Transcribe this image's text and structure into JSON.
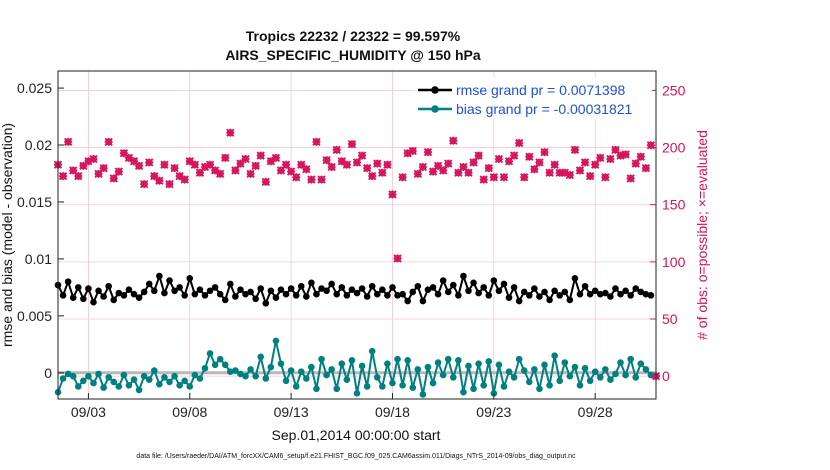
{
  "chart_data": {
    "type": "line",
    "title_line1": "Tropics 22232 / 22322 = 99.597%",
    "title_line2": "AIRS_SPECIFIC_HUMIDITY @ 150 hPa",
    "xlabel": "Sep.01,2014 00:00:00 start",
    "ylabel_left": "rmse and bias (model - observation)",
    "ylabel_right": "# of obs: o=possible; ×=evaluated",
    "footnote": "data file: /Users/raeder/DAI/ATM_forcXX/CAM6_setup/f.e21.FHIST_BGC.f09_025.CAM6assim.011/Diags_NTrS_2014-09/obs_diag_output.nc",
    "xlim": [
      1.5,
      31
    ],
    "x_ticks": [
      3,
      8,
      13,
      18,
      23,
      28
    ],
    "x_tick_labels": [
      "09/03",
      "09/08",
      "09/13",
      "09/18",
      "09/23",
      "09/28"
    ],
    "ylim_left": [
      -0.0023,
      0.0265
    ],
    "y_ticks_left": [
      0,
      0.005,
      0.01,
      0.015,
      0.02,
      0.025
    ],
    "y_tick_labels_left": [
      "0",
      "0.005",
      "0.01",
      "0.015",
      "0.02",
      "0.025"
    ],
    "ylim_right": [
      -20,
      267
    ],
    "y_ticks_right": [
      0,
      50,
      100,
      150,
      200,
      250
    ],
    "y_tick_labels_right": [
      "0",
      "50",
      "100",
      "150",
      "200",
      "250"
    ],
    "legend": [
      {
        "label": "rmse grand pr = 0.0071398",
        "color": "#000000"
      },
      {
        "label": "bias grand pr = -0.00031821",
        "color": "#008080"
      }
    ],
    "colors": {
      "rmse": "#000000",
      "bias": "#008080",
      "obs": "#d6145c",
      "zero_line": "#b8b8b8",
      "grid": "#f3c6d4"
    },
    "x": [
      1.5,
      1.75,
      2.0,
      2.25,
      2.5,
      2.75,
      3.0,
      3.25,
      3.5,
      3.75,
      4.0,
      4.25,
      4.5,
      4.75,
      5.0,
      5.25,
      5.5,
      5.75,
      6.0,
      6.25,
      6.5,
      6.75,
      7.0,
      7.25,
      7.5,
      7.75,
      8.0,
      8.25,
      8.5,
      8.75,
      9.0,
      9.25,
      9.5,
      9.75,
      10.0,
      10.25,
      10.5,
      10.75,
      11.0,
      11.25,
      11.5,
      11.75,
      12.0,
      12.25,
      12.5,
      12.75,
      13.0,
      13.25,
      13.5,
      13.75,
      14.0,
      14.25,
      14.5,
      14.75,
      15.0,
      15.25,
      15.5,
      15.75,
      16.0,
      16.25,
      16.5,
      16.75,
      17.0,
      17.25,
      17.5,
      17.75,
      18.0,
      18.25,
      18.5,
      18.75,
      19.0,
      19.25,
      19.5,
      19.75,
      20.0,
      20.25,
      20.5,
      20.75,
      21.0,
      21.25,
      21.5,
      21.75,
      22.0,
      22.25,
      22.5,
      22.75,
      23.0,
      23.25,
      23.5,
      23.75,
      24.0,
      24.25,
      24.5,
      24.75,
      25.0,
      25.25,
      25.5,
      25.75,
      26.0,
      26.25,
      26.5,
      26.75,
      27.0,
      27.25,
      27.5,
      27.75,
      28.0,
      28.25,
      28.5,
      28.75,
      29.0,
      29.25,
      29.5,
      29.75,
      30.0,
      30.25,
      30.5,
      30.75
    ],
    "rmse": [
      0.0077,
      0.0068,
      0.008,
      0.0066,
      0.0075,
      0.0065,
      0.0074,
      0.0062,
      0.0072,
      0.0067,
      0.0076,
      0.0064,
      0.007,
      0.0068,
      0.0073,
      0.0069,
      0.0066,
      0.0071,
      0.0078,
      0.0072,
      0.0085,
      0.007,
      0.0081,
      0.0072,
      0.0075,
      0.0068,
      0.0083,
      0.0069,
      0.0073,
      0.0068,
      0.0072,
      0.0075,
      0.0069,
      0.0064,
      0.0078,
      0.0067,
      0.0073,
      0.0069,
      0.0071,
      0.0065,
      0.0074,
      0.0061,
      0.0072,
      0.0066,
      0.0073,
      0.0069,
      0.0074,
      0.0068,
      0.0076,
      0.0067,
      0.0079,
      0.0069,
      0.0074,
      0.0072,
      0.0078,
      0.0069,
      0.0075,
      0.0068,
      0.0073,
      0.007,
      0.0074,
      0.0067,
      0.0076,
      0.0069,
      0.0073,
      0.0068,
      0.0075,
      0.0068,
      0.0069,
      0.0063,
      0.0071,
      0.0076,
      0.0063,
      0.0073,
      0.0075,
      0.0069,
      0.0081,
      0.0071,
      0.0077,
      0.0068,
      0.0085,
      0.0072,
      0.0079,
      0.007,
      0.0075,
      0.0068,
      0.0081,
      0.0072,
      0.0078,
      0.0066,
      0.0075,
      0.0063,
      0.0071,
      0.0068,
      0.0074,
      0.0067,
      0.0071,
      0.0064,
      0.0072,
      0.0068,
      0.0071,
      0.0064,
      0.0083,
      0.0069,
      0.0076,
      0.0069,
      0.0072,
      0.0069,
      0.007,
      0.0067,
      0.0074,
      0.0069,
      0.0072,
      0.0068,
      0.0074,
      0.0071,
      0.0069,
      0.0068
    ],
    "bias": [
      -0.0017,
      -0.0005,
      -0.0001,
      -0.0003,
      -0.0012,
      -0.0007,
      -0.0003,
      -0.0009,
      -0.0001,
      -0.0013,
      -0.0004,
      -0.0008,
      -0.0012,
      -0.0002,
      -0.0011,
      -0.0006,
      -0.0015,
      -0.0003,
      -0.0006,
      0.0002,
      -0.001,
      -0.0004,
      -0.0008,
      -0.0003,
      -0.0011,
      -0.0007,
      -0.0012,
      -0.0002,
      -0.0005,
      0.0004,
      0.0017,
      0.0007,
      0.0012,
      0.0007,
      0.0001,
      0.0002,
      -0.0001,
      -0.0003,
      0.0003,
      -0.0003,
      0.0014,
      -0.0005,
      0.0005,
      0.0028,
      0.0008,
      -0.0007,
      0.0002,
      -0.0012,
      0.0001,
      -0.0005,
      0.0005,
      -0.0014,
      0.0012,
      -0.0002,
      0.0003,
      -0.0014,
      0.0008,
      -0.0006,
      0.0011,
      -0.0018,
      0.0006,
      -0.0012,
      0.0019,
      -0.0004,
      -0.0012,
      0.0008,
      -0.0009,
      0.0012,
      -0.0011,
      0.0011,
      -0.0013,
      0.0003,
      -0.0019,
      0.0005,
      -0.0009,
      0.0009,
      -0.0002,
      0.0012,
      -0.0004,
      0.0011,
      -0.0017,
      0.0006,
      -0.0014,
      0.0008,
      -0.0011,
      0.001,
      -0.0018,
      0.0007,
      -0.0012,
      0.0001,
      -0.0004,
      0.0012,
      0.0002,
      -0.0008,
      0.0003,
      -0.0014,
      0.0007,
      -0.0011,
      0.0015,
      -0.0007,
      0.0009,
      -0.0003,
      0.0005,
      -0.0011,
      0.0004,
      -0.0007,
      0.0001,
      -0.0004,
      0.0003,
      -0.0006,
      -0.0001,
      0.0009,
      -0.0002,
      0.0012,
      -0.0004,
      0.0008,
      0.0003,
      -0.0002
    ],
    "obs_count": [
      185,
      175,
      205,
      180,
      175,
      184,
      188,
      190,
      177,
      182,
      205,
      173,
      179,
      195,
      191,
      188,
      184,
      168,
      187,
      175,
      171,
      185,
      168,
      182,
      175,
      172,
      188,
      185,
      178,
      183,
      185,
      180,
      177,
      191,
      213,
      180,
      186,
      190,
      177,
      184,
      193,
      170,
      188,
      191,
      180,
      185,
      179,
      174,
      185,
      181,
      172,
      205,
      172,
      189,
      183,
      198,
      188,
      185,
      203,
      187,
      193,
      182,
      175,
      186,
      178,
      185,
      159,
      103,
      174,
      195,
      197,
      177,
      183,
      196,
      179,
      184,
      180,
      186,
      206,
      178,
      183,
      178,
      187,
      193,
      172,
      182,
      174,
      190,
      174,
      188,
      193,
      204,
      174,
      192,
      181,
      187,
      196,
      178,
      185,
      178,
      178,
      176,
      198,
      180,
      187,
      175,
      185,
      191,
      174,
      190,
      198,
      193,
      194,
      173,
      186,
      192,
      182,
      202
    ],
    "obs_extra_x": [
      31
    ],
    "obs_extra": [
      0
    ]
  }
}
